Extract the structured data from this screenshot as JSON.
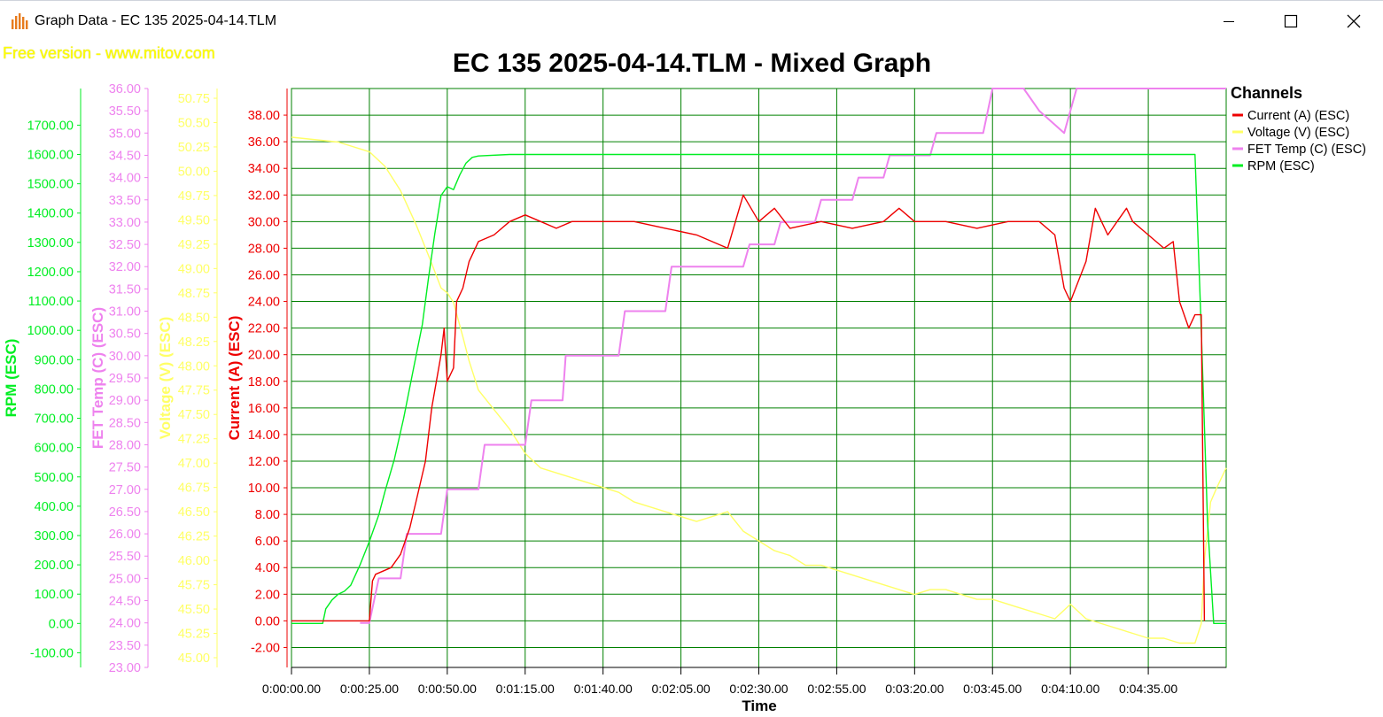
{
  "window": {
    "title": "Graph Data - EC 135 2025-04-14.TLM",
    "minimize_icon": "minimize-icon",
    "maximize_icon": "maximize-icon",
    "close_icon": "close-icon"
  },
  "watermark": "Free version - www.mitov.com",
  "colors": {
    "current": "#ee0000",
    "voltage": "#ffff66",
    "fet_temp": "#ee82ee",
    "rpm": "#00ee22",
    "grid": "#008000"
  },
  "chart_data": {
    "type": "line",
    "title": "EC 135 2025-04-14.TLM - Mixed Graph",
    "xlabel": "Time",
    "x_unit": "seconds",
    "xlim": [
      0,
      300
    ],
    "x_ticks": [
      "0:00:00.00",
      "0:00:25.00",
      "0:00:50.00",
      "0:01:15.00",
      "0:01:40.00",
      "0:02:05.00",
      "0:02:30.00",
      "0:02:55.00",
      "0:03:20.00",
      "0:03:45.00",
      "0:04:10.00",
      "0:04:35.00"
    ],
    "grid": true,
    "legend": {
      "title": "Channels",
      "placement": "right",
      "entries": [
        "Current (A) (ESC)",
        "Voltage (V) (ESC)",
        "FET Temp (C) (ESC)",
        "RPM (ESC)"
      ]
    },
    "axes": [
      {
        "key": "rpm",
        "label": "RPM (ESC)",
        "ylim": [
          -150,
          1825
        ],
        "ticks": [
          "-100.00",
          "0.00",
          "100.00",
          "200.00",
          "300.00",
          "400.00",
          "500.00",
          "600.00",
          "700.00",
          "800.00",
          "900.00",
          "1000.00",
          "1100.00",
          "1200.00",
          "1300.00",
          "1400.00",
          "1500.00",
          "1600.00",
          "1700.00"
        ]
      },
      {
        "key": "fet_temp",
        "label": "FET Temp (C) (ESC)",
        "ylim": [
          23,
          36
        ],
        "ticks": [
          "23.00",
          "23.50",
          "24.00",
          "24.50",
          "25.00",
          "25.50",
          "26.00",
          "26.50",
          "27.00",
          "27.50",
          "28.00",
          "28.50",
          "29.00",
          "29.50",
          "30.00",
          "30.50",
          "31.00",
          "31.50",
          "32.00",
          "32.50",
          "33.00",
          "33.50",
          "34.00",
          "34.50",
          "35.00",
          "35.50",
          "36.00"
        ]
      },
      {
        "key": "voltage",
        "label": "Voltage (V) (ESC)",
        "ylim": [
          44.9,
          50.85
        ],
        "ticks": [
          "45.00",
          "45.25",
          "45.50",
          "45.75",
          "46.00",
          "46.25",
          "46.50",
          "46.75",
          "47.00",
          "47.25",
          "47.50",
          "47.75",
          "48.00",
          "48.25",
          "48.50",
          "48.75",
          "49.00",
          "49.25",
          "49.50",
          "49.75",
          "50.00",
          "50.25",
          "50.50",
          "50.75"
        ]
      },
      {
        "key": "current",
        "label": "Current (A) (ESC)",
        "ylim": [
          -3.5,
          40
        ],
        "ticks": [
          "-2.00",
          "0.00",
          "2.00",
          "4.00",
          "6.00",
          "8.00",
          "10.00",
          "12.00",
          "14.00",
          "16.00",
          "18.00",
          "20.00",
          "22.00",
          "24.00",
          "26.00",
          "28.00",
          "30.00",
          "32.00",
          "34.00",
          "36.00",
          "38.00"
        ]
      }
    ],
    "series": [
      {
        "name": "Current (A) (ESC)",
        "key": "current",
        "axis": "current",
        "x": [
          0,
          25,
          26,
          27,
          32,
          35,
          38,
          40,
          43,
          45,
          48,
          49,
          50,
          52,
          53,
          55,
          57,
          60,
          65,
          70,
          75,
          80,
          85,
          90,
          95,
          100,
          110,
          120,
          130,
          140,
          145,
          150,
          155,
          160,
          170,
          180,
          190,
          195,
          200,
          210,
          220,
          230,
          240,
          245,
          248,
          250,
          255,
          258,
          260,
          262,
          265,
          268,
          270,
          275,
          280,
          283,
          285,
          288,
          290,
          292,
          293
        ],
        "y": [
          0,
          0,
          3,
          3.5,
          4,
          5,
          7,
          9,
          12,
          16,
          20,
          22,
          18,
          19,
          24,
          25,
          27,
          28.5,
          29,
          30,
          30.5,
          30,
          29.5,
          30,
          30,
          30,
          30,
          29.5,
          29,
          28,
          32,
          30,
          31,
          29.5,
          30,
          29.5,
          30,
          31,
          30,
          30,
          29.5,
          30,
          30,
          29,
          25,
          24,
          27,
          31,
          30,
          29,
          30,
          31,
          30,
          29,
          28,
          28.5,
          24,
          22,
          23,
          23,
          0
        ]
      },
      {
        "name": "Voltage (V) (ESC)",
        "key": "voltage",
        "axis": "voltage",
        "x": [
          0,
          15,
          25,
          30,
          35,
          40,
          45,
          48,
          50,
          52,
          55,
          57,
          60,
          65,
          70,
          75,
          80,
          85,
          90,
          95,
          100,
          105,
          110,
          115,
          120,
          125,
          130,
          135,
          140,
          145,
          150,
          155,
          160,
          165,
          170,
          175,
          180,
          185,
          190,
          195,
          200,
          205,
          210,
          215,
          220,
          225,
          230,
          235,
          240,
          245,
          250,
          255,
          260,
          265,
          270,
          275,
          280,
          285,
          290,
          292,
          293,
          295,
          297,
          300
        ],
        "y": [
          50.35,
          50.3,
          50.2,
          50.05,
          49.8,
          49.45,
          49.05,
          48.8,
          48.75,
          48.65,
          48.3,
          48.05,
          47.75,
          47.55,
          47.35,
          47.1,
          46.95,
          46.9,
          46.85,
          46.8,
          46.75,
          46.7,
          46.6,
          46.55,
          46.5,
          46.45,
          46.4,
          46.45,
          46.5,
          46.3,
          46.2,
          46.1,
          46.05,
          45.95,
          45.95,
          45.9,
          45.85,
          45.8,
          45.75,
          45.7,
          45.65,
          45.7,
          45.7,
          45.65,
          45.6,
          45.6,
          45.55,
          45.5,
          45.45,
          45.4,
          45.55,
          45.4,
          45.35,
          45.3,
          45.25,
          45.2,
          45.2,
          45.15,
          45.15,
          45.35,
          46.0,
          46.6,
          46.75,
          46.95
        ]
      },
      {
        "name": "FET Temp (C) (ESC)",
        "key": "fet_temp",
        "axis": "fet_temp",
        "x": [
          0,
          20,
          22,
          25,
          28,
          35,
          37,
          48,
          50,
          60,
          62,
          75,
          77,
          87,
          88,
          105,
          107,
          120,
          122,
          145,
          147,
          155,
          157,
          168,
          170,
          180,
          182,
          190,
          192,
          205,
          207,
          222,
          225,
          235,
          240,
          248,
          252,
          256,
          258,
          300
        ],
        "y": [
          null,
          null,
          24,
          24,
          25,
          25,
          26,
          26,
          27,
          27,
          28,
          28,
          29,
          29,
          30,
          30,
          31,
          31,
          32,
          32,
          32.5,
          32.5,
          33,
          33,
          33.5,
          33.5,
          34,
          34,
          34.5,
          34.5,
          35,
          35,
          36,
          36,
          35.5,
          35,
          36,
          36,
          36,
          36
        ]
      },
      {
        "name": "RPM (ESC)",
        "key": "rpm",
        "axis": "rpm",
        "x": [
          0,
          10,
          11,
          13,
          15,
          17,
          19,
          22,
          25,
          28,
          30,
          33,
          36,
          39,
          42,
          44,
          46,
          48,
          50,
          52,
          54,
          56,
          58,
          60,
          70,
          80,
          100,
          120,
          140,
          160,
          180,
          200,
          220,
          240,
          250,
          260,
          270,
          280,
          290,
          292,
          294,
          296,
          298,
          300
        ],
        "y": [
          0,
          0,
          50,
          80,
          100,
          110,
          130,
          200,
          280,
          370,
          450,
          560,
          700,
          860,
          1020,
          1180,
          1330,
          1460,
          1490,
          1480,
          1530,
          1570,
          1590,
          1595,
          1600,
          1600,
          1600,
          1600,
          1600,
          1600,
          1600,
          1600,
          1600,
          1600,
          1600,
          1600,
          1600,
          1600,
          1600,
          1000,
          350,
          0,
          0,
          0
        ]
      }
    ]
  }
}
